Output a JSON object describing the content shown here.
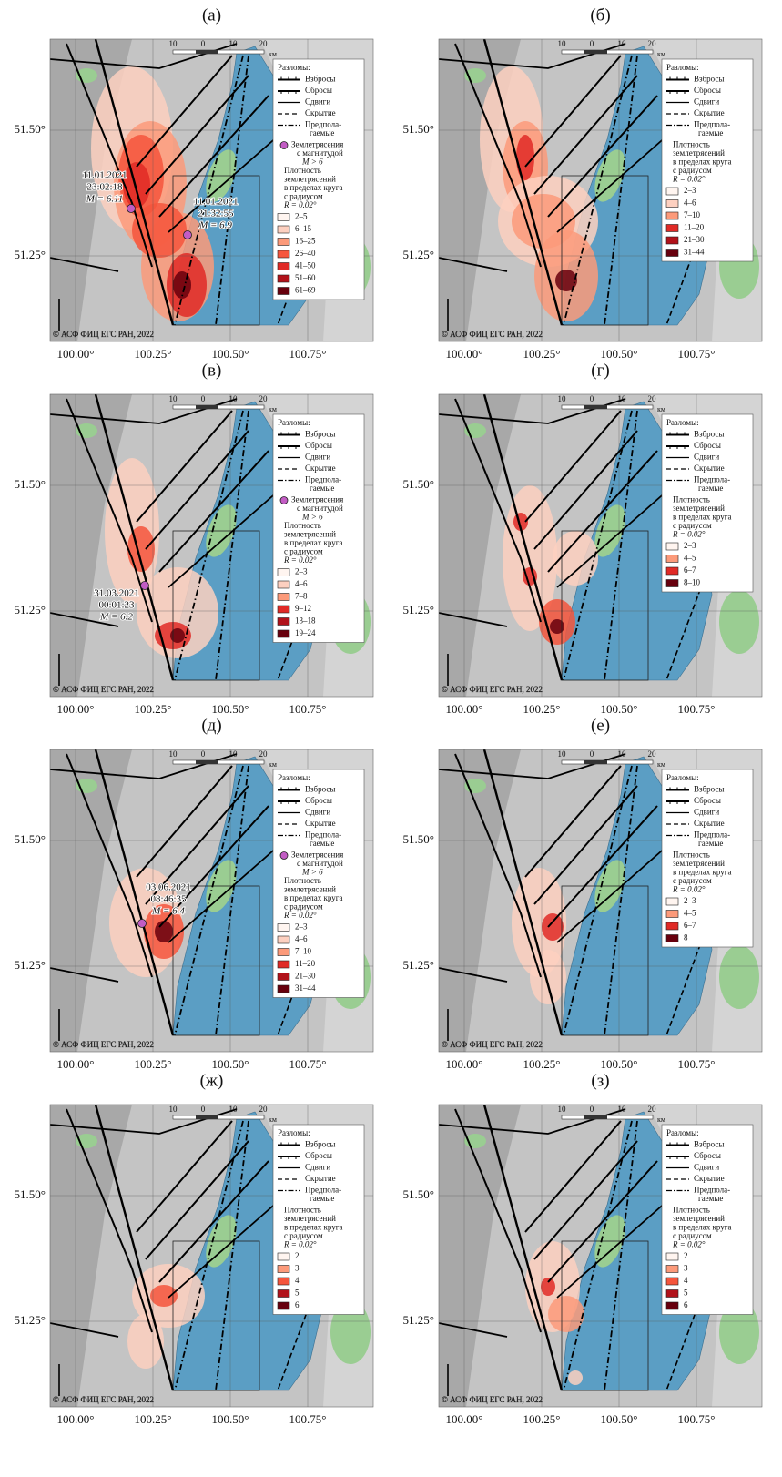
{
  "panels": [
    {
      "label": "(а)",
      "classes": [
        "2–5",
        "6–15",
        "16–25",
        "26–40",
        "41–50",
        "51–60",
        "61–69"
      ],
      "earthquakes": [
        {
          "date": "11.01.2021",
          "time": "23:02:18",
          "magnitude": "M = 6.11"
        },
        {
          "date": "11.01.2021",
          "time": "21:32:55",
          "magnitude": "M = 6.9"
        }
      ]
    },
    {
      "label": "(б)",
      "classes": [
        "2–3",
        "4–6",
        "7–10",
        "11–20",
        "21–30",
        "31–44"
      ],
      "earthquakes": []
    },
    {
      "label": "(в)",
      "classes": [
        "2–3",
        "4–6",
        "7–8",
        "9–12",
        "13–18",
        "19–24"
      ],
      "earthquakes": [
        {
          "date": "31.03.2021",
          "time": "00:01:23",
          "magnitude": "M = 6.2"
        }
      ]
    },
    {
      "label": "(г)",
      "classes": [
        "2–3",
        "4–5",
        "6–7",
        "8–10"
      ],
      "earthquakes": []
    },
    {
      "label": "(д)",
      "classes": [
        "2–3",
        "4–6",
        "7–10",
        "11–20",
        "21–30",
        "31–44"
      ],
      "earthquakes": [
        {
          "date": "03.06.2021",
          "time": "08:46:35",
          "magnitude": "M = 6.4"
        }
      ]
    },
    {
      "label": "(е)",
      "classes": [
        "2–3",
        "4–5",
        "6–7",
        "8"
      ],
      "earthquakes": []
    },
    {
      "label": "(ж)",
      "classes": [
        "2",
        "3",
        "4",
        "5",
        "6"
      ],
      "earthquakes": []
    },
    {
      "label": "(з)",
      "classes": [
        "2",
        "3",
        "4",
        "5",
        "6"
      ],
      "earthquakes": []
    }
  ],
  "shared": {
    "lat_labels": [
      "51.50°",
      "51.25°"
    ],
    "lon_labels": [
      "100.00°",
      "100.25°",
      "100.50°",
      "100.75°"
    ],
    "scale_labels": [
      "10",
      "0",
      "10",
      "20"
    ],
    "scale_unit": "км",
    "copyright": "© АСФ ФИЦ ЕГС РАН, 2022",
    "legend": {
      "faults_title": "Разломы:",
      "fault_types": [
        [
          "Взбросы"
        ],
        [
          "Сбросы"
        ],
        [
          "Сдвиги"
        ],
        [
          "Скрытие"
        ],
        [
          "Предпола-",
          "гаемые"
        ]
      ],
      "quake_entry": [
        "Землетрясения",
        "с магнитудой",
        "M > 6"
      ],
      "density_entry": [
        "Плотность",
        "землетрясений",
        "в пределах круга",
        "с радиусом",
        "R = 0.02°"
      ]
    },
    "palette": [
      "#fff5f0",
      "#fdd0c0",
      "#fc9a7a",
      "#f5553c",
      "#e02a26",
      "#b1121a",
      "#67000d"
    ]
  }
}
